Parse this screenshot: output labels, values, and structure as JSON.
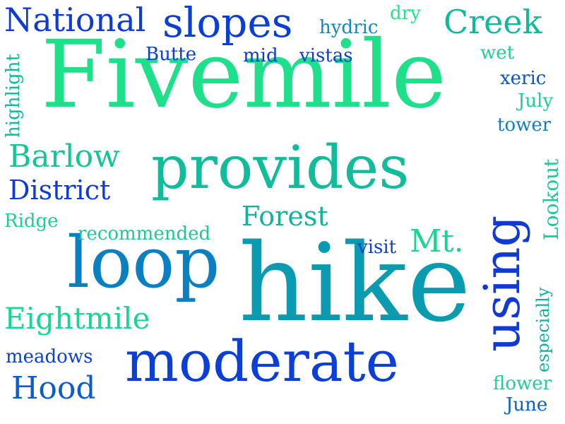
{
  "colors": {
    "background": "#ffffff",
    "palette": [
      "#0f3ad6",
      "#0a55cf",
      "#0b7ec0",
      "#0a9ab1",
      "#10b89c",
      "#1ccf92",
      "#1fe588"
    ]
  },
  "words": [
    "Fivemile",
    "hike",
    "provides",
    "moderate",
    "loop",
    "using",
    "slopes",
    "National",
    "Creek",
    "Barlow",
    "District",
    "Forest",
    "Eightmile",
    "Hood",
    "Mt.",
    "Lookout",
    "especially",
    "hydric",
    "dry",
    "Butte",
    "mid",
    "vistas",
    "wet",
    "xeric",
    "July",
    "tower",
    "highlight",
    "Ridge",
    "recommended",
    "visit",
    "meadows",
    "flower",
    "June"
  ]
}
